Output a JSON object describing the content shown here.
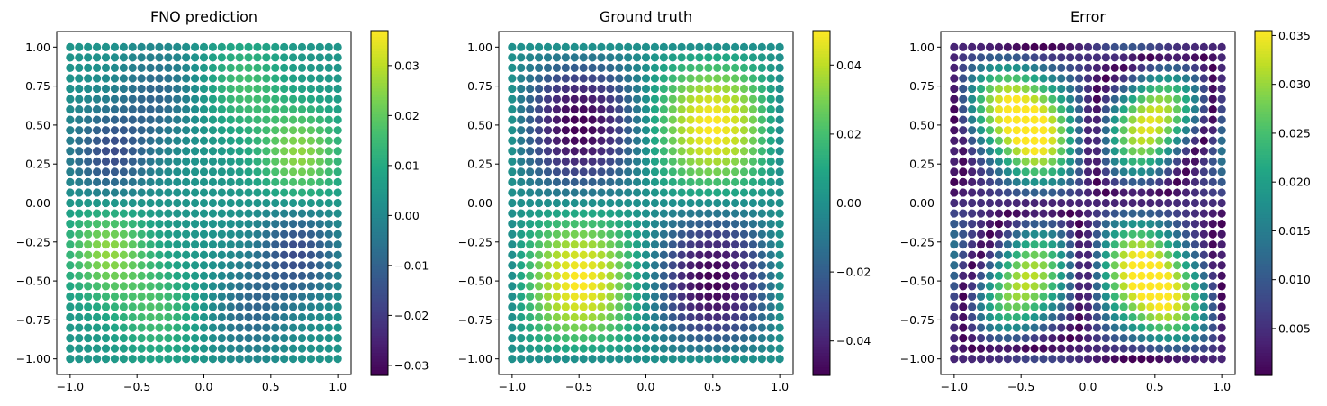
{
  "chart_data": [
    {
      "type": "scatter",
      "title": "FNO prediction",
      "xlabel": "",
      "ylabel": "",
      "xlim": [
        -1.1,
        1.1
      ],
      "ylim": [
        -1.1,
        1.1
      ],
      "grid": false,
      "x_ticks": [
        "−1.0",
        "−0.5",
        "0.0",
        "0.5",
        "1.0"
      ],
      "y_ticks": [
        "1.00",
        "0.75",
        "0.50",
        "0.25",
        "0.00",
        "−0.25",
        "−0.50",
        "−0.75",
        "−1.00"
      ],
      "grid_points_per_axis": 31,
      "x_range": [
        -1.0,
        1.0
      ],
      "y_range": [
        -1.0,
        1.0
      ],
      "field": "approx 0.035·sin(πx)·sin(πy) with shifted peaks",
      "colorbar": {
        "colormap": "viridis",
        "range": [
          -0.032,
          0.037
        ],
        "ticks": [
          "0.03",
          "0.02",
          "0.01",
          "0.00",
          "−0.01",
          "−0.02",
          "−0.03"
        ]
      }
    },
    {
      "type": "scatter",
      "title": "Ground truth",
      "xlabel": "",
      "ylabel": "",
      "xlim": [
        -1.1,
        1.1
      ],
      "ylim": [
        -1.1,
        1.1
      ],
      "grid": false,
      "x_ticks": [
        "−1.0",
        "−0.5",
        "0.0",
        "0.5",
        "1.0"
      ],
      "y_ticks": [
        "1.00",
        "0.75",
        "0.50",
        "0.25",
        "0.00",
        "−0.25",
        "−0.50",
        "−0.75",
        "−1.00"
      ],
      "grid_points_per_axis": 31,
      "x_range": [
        -1.0,
        1.0
      ],
      "y_range": [
        -1.0,
        1.0
      ],
      "field": "0.05·sin(πx)·sin(πy)",
      "colorbar": {
        "colormap": "viridis",
        "range": [
          -0.05,
          0.05
        ],
        "ticks": [
          "0.04",
          "0.02",
          "0.00",
          "−0.02",
          "−0.04"
        ]
      }
    },
    {
      "type": "scatter",
      "title": "Error",
      "xlabel": "",
      "ylabel": "",
      "xlim": [
        -1.1,
        1.1
      ],
      "ylim": [
        -1.1,
        1.1
      ],
      "grid": false,
      "x_ticks": [
        "−1.0",
        "−0.5",
        "0.0",
        "0.5",
        "1.0"
      ],
      "y_ticks": [
        "1.00",
        "0.75",
        "0.50",
        "0.25",
        "0.00",
        "−0.25",
        "−0.50",
        "−0.75",
        "−1.00"
      ],
      "grid_points_per_axis": 31,
      "x_range": [
        -1.0,
        1.0
      ],
      "y_range": [
        -1.0,
        1.0
      ],
      "field": "absolute difference |prediction − ground truth|",
      "colorbar": {
        "colormap": "viridis",
        "range": [
          0.0002,
          0.0355
        ],
        "ticks": [
          "0.035",
          "0.030",
          "0.025",
          "0.020",
          "0.015",
          "0.010",
          "0.005"
        ]
      }
    }
  ]
}
